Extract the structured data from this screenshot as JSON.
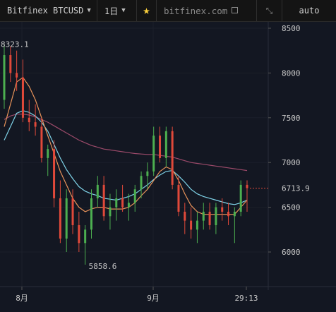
{
  "toolbar": {
    "symbol": "Bitfinex BTCUSD",
    "interval": "1日",
    "site": "bitfinex.com",
    "scale_mode": "auto"
  },
  "colors": {
    "background": "#131722",
    "up": "#4caf50",
    "down": "#e0493a",
    "ma_fast": "#e8935a",
    "ma_mid": "#7fd3e8",
    "ma_slow": "#9c4a6a",
    "star": "#ffd33d"
  },
  "chart_data": {
    "type": "candlestick",
    "y_ticks": [
      "8500",
      "8000",
      "7500",
      "7000",
      "6500",
      "6000"
    ],
    "ylim": [
      5700,
      8600
    ],
    "x_ticks": [
      "8月",
      "9月"
    ],
    "time_readout": "29:13",
    "last_price": "6713.9",
    "high_label": "8323.1",
    "low_label": "5858.6",
    "candles": [
      {
        "o": 7700,
        "h": 8323.1,
        "l": 7600,
        "c": 8200
      },
      {
        "o": 8200,
        "h": 8300,
        "l": 7900,
        "c": 8000
      },
      {
        "o": 8000,
        "h": 8250,
        "l": 7800,
        "c": 7950
      },
      {
        "o": 7950,
        "h": 8150,
        "l": 7450,
        "c": 7500
      },
      {
        "o": 7500,
        "h": 7700,
        "l": 7350,
        "c": 7450
      },
      {
        "o": 7450,
        "h": 7650,
        "l": 7300,
        "c": 7400
      },
      {
        "o": 7400,
        "h": 7500,
        "l": 7000,
        "c": 7050
      },
      {
        "o": 7050,
        "h": 7200,
        "l": 6850,
        "c": 7150
      },
      {
        "o": 7150,
        "h": 7250,
        "l": 6500,
        "c": 6600
      },
      {
        "o": 6600,
        "h": 6800,
        "l": 6100,
        "c": 6150
      },
      {
        "o": 6150,
        "h": 6700,
        "l": 6000,
        "c": 6600
      },
      {
        "o": 6600,
        "h": 6700,
        "l": 6200,
        "c": 6300
      },
      {
        "o": 6300,
        "h": 6450,
        "l": 6000,
        "c": 6100
      },
      {
        "o": 6100,
        "h": 6300,
        "l": 5858.6,
        "c": 6250
      },
      {
        "o": 6250,
        "h": 6700,
        "l": 6150,
        "c": 6600
      },
      {
        "o": 6600,
        "h": 6850,
        "l": 6500,
        "c": 6750
      },
      {
        "o": 6750,
        "h": 6850,
        "l": 6350,
        "c": 6400
      },
      {
        "o": 6400,
        "h": 6650,
        "l": 6250,
        "c": 6500
      },
      {
        "o": 6500,
        "h": 6700,
        "l": 6350,
        "c": 6600
      },
      {
        "o": 6600,
        "h": 6750,
        "l": 6450,
        "c": 6500
      },
      {
        "o": 6500,
        "h": 6650,
        "l": 6350,
        "c": 6550
      },
      {
        "o": 6550,
        "h": 6750,
        "l": 6450,
        "c": 6700
      },
      {
        "o": 6700,
        "h": 6900,
        "l": 6600,
        "c": 6850
      },
      {
        "o": 6850,
        "h": 7000,
        "l": 6700,
        "c": 6900
      },
      {
        "o": 6900,
        "h": 7400,
        "l": 6850,
        "c": 7300
      },
      {
        "o": 7300,
        "h": 7400,
        "l": 7000,
        "c": 7050
      },
      {
        "o": 7050,
        "h": 7400,
        "l": 6950,
        "c": 7350
      },
      {
        "o": 7350,
        "h": 7400,
        "l": 6700,
        "c": 6750
      },
      {
        "o": 6750,
        "h": 6850,
        "l": 6400,
        "c": 6450
      },
      {
        "o": 6450,
        "h": 6550,
        "l": 6200,
        "c": 6350
      },
      {
        "o": 6350,
        "h": 6500,
        "l": 6150,
        "c": 6250
      },
      {
        "o": 6250,
        "h": 6450,
        "l": 6100,
        "c": 6350
      },
      {
        "o": 6350,
        "h": 6550,
        "l": 6250,
        "c": 6450
      },
      {
        "o": 6450,
        "h": 6550,
        "l": 6250,
        "c": 6300
      },
      {
        "o": 6300,
        "h": 6550,
        "l": 6200,
        "c": 6500
      },
      {
        "o": 6500,
        "h": 6600,
        "l": 6350,
        "c": 6450
      },
      {
        "o": 6450,
        "h": 6550,
        "l": 6300,
        "c": 6400
      },
      {
        "o": 6400,
        "h": 6500,
        "l": 6100,
        "c": 6450
      },
      {
        "o": 6450,
        "h": 6800,
        "l": 6400,
        "c": 6750
      },
      {
        "o": 6750,
        "h": 6800,
        "l": 6450,
        "c": 6713.9
      }
    ],
    "ma_fast": [
      7400,
      7650,
      7900,
      7950,
      7850,
      7700,
      7500,
      7300,
      7100,
      6900,
      6750,
      6600,
      6500,
      6450,
      6480,
      6500,
      6500,
      6480,
      6480,
      6480,
      6500,
      6550,
      6630,
      6700,
      6800,
      6900,
      6950,
      6920,
      6800,
      6650,
      6520,
      6450,
      6420,
      6420,
      6420,
      6420,
      6420,
      6420,
      6500,
      6580
    ],
    "ma_mid": [
      7250,
      7400,
      7550,
      7580,
      7560,
      7520,
      7450,
      7350,
      7200,
      7050,
      6920,
      6820,
      6730,
      6680,
      6650,
      6630,
      6600,
      6590,
      6580,
      6600,
      6620,
      6650,
      6700,
      6750,
      6810,
      6860,
      6900,
      6910,
      6850,
      6780,
      6700,
      6650,
      6620,
      6600,
      6580,
      6560,
      6540,
      6530,
      6550,
      6580
    ],
    "ma_slow": [
      7480,
      7520,
      7540,
      7540,
      7530,
      7510,
      7480,
      7450,
      7410,
      7370,
      7330,
      7290,
      7250,
      7220,
      7190,
      7170,
      7150,
      7140,
      7130,
      7120,
      7110,
      7100,
      7095,
      7090,
      7090,
      7080,
      7070,
      7060,
      7040,
      7020,
      7000,
      6990,
      6980,
      6970,
      6960,
      6950,
      6940,
      6930,
      6920,
      6910
    ]
  }
}
